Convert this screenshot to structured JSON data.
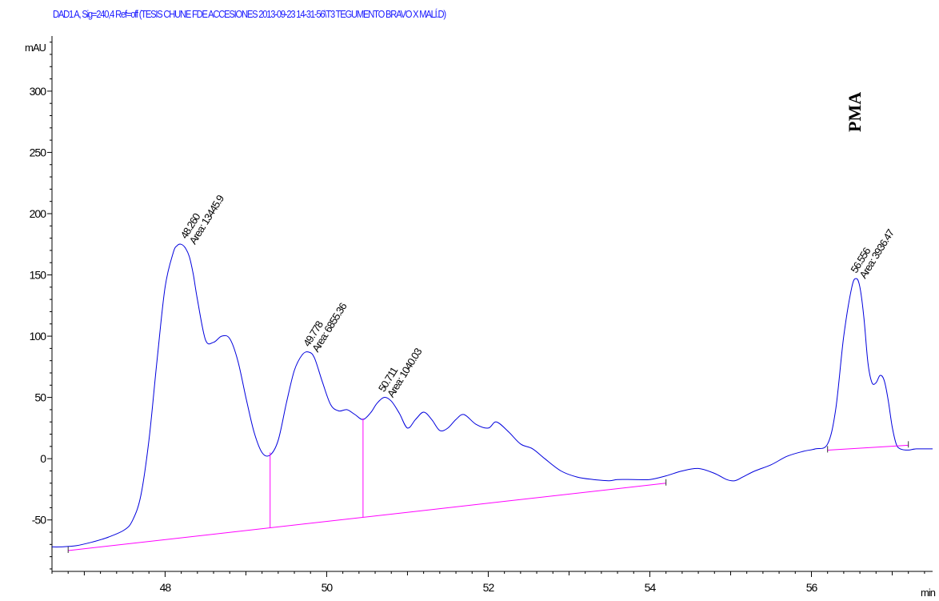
{
  "header": {
    "signal": "DAD1 A, Sig=240,4 Ref=off (TESIS CHUNE FDE ACCESIONES 2013-09-23 14-31-56\\T3 TEGUMENTO BRAVO X MALÍ.D)"
  },
  "chart_data": {
    "type": "line",
    "title": "DAD1 A, Sig=240,4 Ref=off (TESIS CHUNE FDE ACCESIONES 2013-09-23 14-31-56\\T3 TEGUMENTO BRAVO X MALÍ.D)",
    "xlabel": "min",
    "ylabel": "mAU",
    "xlim": [
      46.6,
      57.5
    ],
    "ylim": [
      -92,
      345
    ],
    "x_ticks": [
      48,
      50,
      52,
      54,
      56
    ],
    "x_tick_labels": [
      "48",
      "50",
      "52",
      "54",
      "56"
    ],
    "y_ticks": [
      -50,
      0,
      50,
      100,
      150,
      200,
      250,
      300
    ],
    "y_tick_labels": [
      "-50",
      "0",
      "50",
      "100",
      "150",
      "200",
      "250",
      "300"
    ],
    "series": [
      {
        "color": "#0000dd",
        "x": [
          46.6,
          46.7,
          46.9,
          47.1,
          47.3,
          47.5,
          47.6,
          47.7,
          47.8,
          47.9,
          48.0,
          48.1,
          48.15,
          48.2,
          48.25,
          48.3,
          48.35,
          48.4,
          48.5,
          48.6,
          48.7,
          48.8,
          48.9,
          49.0,
          49.1,
          49.2,
          49.3,
          49.4,
          49.5,
          49.6,
          49.7,
          49.78,
          49.85,
          49.95,
          50.05,
          50.15,
          50.25,
          50.35,
          50.45,
          50.55,
          50.62,
          50.71,
          50.8,
          50.9,
          51.0,
          51.1,
          51.2,
          51.3,
          51.4,
          51.5,
          51.6,
          51.7,
          51.85,
          52.0,
          52.1,
          52.25,
          52.4,
          52.55,
          52.7,
          52.9,
          53.1,
          53.3,
          53.5,
          53.6,
          53.8,
          54.0,
          54.2,
          54.4,
          54.6,
          54.8,
          54.95,
          55.05,
          55.15,
          55.3,
          55.5,
          55.7,
          55.9,
          56.05,
          56.2,
          56.3,
          56.4,
          56.5,
          56.556,
          56.6,
          56.65,
          56.7,
          56.75,
          56.8,
          56.85,
          56.9,
          56.95,
          57.0,
          57.05,
          57.1,
          57.2,
          57.3,
          57.5
        ],
        "y": [
          -72,
          -72,
          -71,
          -68,
          -64,
          -58,
          -50,
          -30,
          15,
          80,
          140,
          168,
          174,
          175,
          172,
          165,
          150,
          130,
          97,
          95,
          100,
          98,
          80,
          50,
          22,
          5,
          3,
          15,
          45,
          72,
          85,
          87,
          82,
          62,
          44,
          39,
          40,
          36,
          32,
          38,
          45,
          50,
          47,
          37,
          25,
          32,
          38,
          32,
          23,
          25,
          32,
          36,
          28,
          25,
          30,
          22,
          12,
          8,
          0,
          -10,
          -15,
          -17,
          -18,
          -17,
          -17,
          -17,
          -14,
          -10,
          -8,
          -12,
          -17,
          -18,
          -15,
          -10,
          -5,
          2,
          6,
          8,
          12,
          40,
          100,
          140,
          147,
          140,
          115,
          78,
          62,
          62,
          68,
          64,
          48,
          26,
          12,
          8,
          7,
          8,
          8
        ],
        "values_note": ""
      }
    ],
    "baselines": {
      "color": "#ff00ff",
      "segments": [
        {
          "x": [
            46.8,
            54.2
          ],
          "y": [
            -75,
            -20
          ]
        },
        {
          "x": [
            56.2,
            57.2
          ],
          "y": [
            7,
            11
          ]
        }
      ],
      "drop_lines": [
        {
          "x": 49.3,
          "y_top": 5
        },
        {
          "x": 50.45,
          "y_top": 33
        }
      ],
      "tick_marks": [
        46.8,
        54.2,
        56.2,
        57.2
      ]
    },
    "peaks": [
      {
        "rt_label": "48.260",
        "area_label": "Area: 13445.9",
        "x": 48.26,
        "y": 175
      },
      {
        "rt_label": "49.778",
        "area_label": "Area: 6855.36",
        "x": 49.78,
        "y": 87
      },
      {
        "rt_label": "50.711",
        "area_label": "Area: 1040.03",
        "x": 50.71,
        "y": 50
      },
      {
        "rt_label": "56.556",
        "area_label": "Area: 3936.47",
        "x": 56.556,
        "y": 147
      }
    ],
    "annotation": "PMA"
  }
}
